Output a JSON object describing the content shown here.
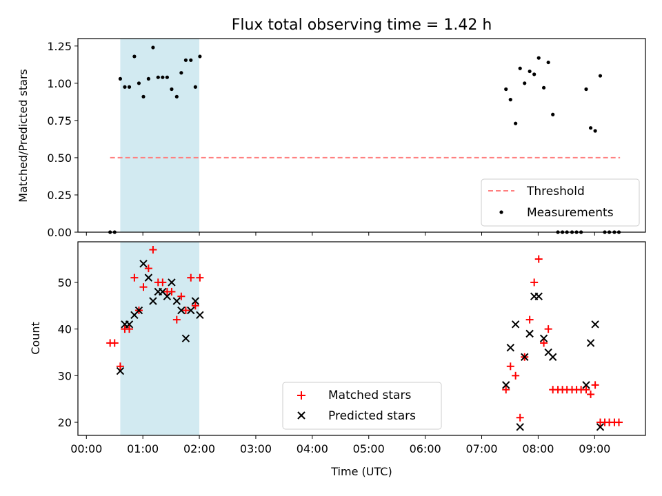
{
  "figure": {
    "title": "Flux total observing time = 1.42 h"
  },
  "chart_data": [
    {
      "type": "scatter",
      "title": "Flux total observing time = 1.42 h",
      "xlabel": "",
      "ylabel": "Matched/Predicted stars",
      "xlim": [
        -0.15,
        9.9
      ],
      "ylim": [
        0.0,
        1.3
      ],
      "yticks": [
        0.0,
        0.25,
        0.5,
        0.75,
        1.0,
        1.25
      ],
      "ytick_labels": [
        "0.00",
        "0.25",
        "0.50",
        "0.75",
        "1.00",
        "1.25"
      ],
      "shaded_region": {
        "x_start": 0.6,
        "x_end": 2.0,
        "color": "#add8e6"
      },
      "threshold": {
        "name": "Threshold",
        "y": 0.5,
        "x_start": 0.42,
        "x_end": 9.45,
        "color": "#ff7f7f",
        "style": "dashed"
      },
      "measurements": {
        "name": "Measurements",
        "color": "#000000",
        "points": [
          [
            0.42,
            0.0
          ],
          [
            0.5,
            0.0
          ],
          [
            0.6,
            1.03
          ],
          [
            0.68,
            0.975
          ],
          [
            0.76,
            0.975
          ],
          [
            0.85,
            1.18
          ],
          [
            0.93,
            1.0
          ],
          [
            1.01,
            0.91
          ],
          [
            1.1,
            1.03
          ],
          [
            1.18,
            1.24
          ],
          [
            1.27,
            1.04
          ],
          [
            1.35,
            1.04
          ],
          [
            1.43,
            1.04
          ],
          [
            1.51,
            0.96
          ],
          [
            1.6,
            0.91
          ],
          [
            1.68,
            1.07
          ],
          [
            1.76,
            1.155
          ],
          [
            1.85,
            1.155
          ],
          [
            1.93,
            0.975
          ],
          [
            2.01,
            1.18
          ],
          [
            7.43,
            0.96
          ],
          [
            7.51,
            0.89
          ],
          [
            7.6,
            0.73
          ],
          [
            7.68,
            1.1
          ],
          [
            7.76,
            1.0
          ],
          [
            7.85,
            1.08
          ],
          [
            7.93,
            1.06
          ],
          [
            8.01,
            1.17
          ],
          [
            8.1,
            0.97
          ],
          [
            8.18,
            1.14
          ],
          [
            8.26,
            0.79
          ],
          [
            8.35,
            0.0
          ],
          [
            8.43,
            0.0
          ],
          [
            8.51,
            0.0
          ],
          [
            8.6,
            0.0
          ],
          [
            8.68,
            0.0
          ],
          [
            8.76,
            0.0
          ],
          [
            8.85,
            0.96
          ],
          [
            8.93,
            0.7
          ],
          [
            9.01,
            0.68
          ],
          [
            9.1,
            1.05
          ],
          [
            9.18,
            0.0
          ],
          [
            9.26,
            0.0
          ],
          [
            9.35,
            0.0
          ],
          [
            9.43,
            0.0
          ]
        ]
      },
      "legend": {
        "placement": "lower-right",
        "entries": [
          "Threshold",
          "Measurements"
        ]
      }
    },
    {
      "type": "scatter",
      "title": "",
      "xlabel": "Time (UTC)",
      "ylabel": "Count",
      "xlim": [
        -0.15,
        9.9
      ],
      "ylim": [
        17.2,
        58.7
      ],
      "yticks": [
        20,
        30,
        40,
        50
      ],
      "ytick_labels": [
        "20",
        "30",
        "40",
        "50"
      ],
      "xticks": [
        0,
        1,
        2,
        3,
        4,
        5,
        6,
        7,
        8,
        9
      ],
      "xtick_labels": [
        "00:00",
        "01:00",
        "02:00",
        "03:00",
        "04:00",
        "05:00",
        "06:00",
        "07:00",
        "08:00",
        "09:00"
      ],
      "shaded_region": {
        "x_start": 0.6,
        "x_end": 2.0,
        "color": "#add8e6"
      },
      "series": [
        {
          "name": "Matched stars",
          "marker": "plus",
          "color": "#ff0000",
          "points": [
            [
              0.42,
              37
            ],
            [
              0.5,
              37
            ],
            [
              0.6,
              32
            ],
            [
              0.68,
              40
            ],
            [
              0.76,
              40
            ],
            [
              0.85,
              51
            ],
            [
              0.93,
              44
            ],
            [
              1.01,
              49
            ],
            [
              1.1,
              53
            ],
            [
              1.18,
              57
            ],
            [
              1.27,
              50
            ],
            [
              1.35,
              50
            ],
            [
              1.43,
              48
            ],
            [
              1.51,
              48
            ],
            [
              1.6,
              42
            ],
            [
              1.68,
              47
            ],
            [
              1.76,
              44
            ],
            [
              1.85,
              51
            ],
            [
              1.93,
              45
            ],
            [
              2.01,
              51
            ],
            [
              7.43,
              27
            ],
            [
              7.51,
              32
            ],
            [
              7.6,
              30
            ],
            [
              7.68,
              21
            ],
            [
              7.76,
              34
            ],
            [
              7.85,
              42
            ],
            [
              7.93,
              50
            ],
            [
              8.01,
              55
            ],
            [
              8.1,
              37
            ],
            [
              8.18,
              40
            ],
            [
              8.26,
              27
            ],
            [
              8.35,
              27
            ],
            [
              8.43,
              27
            ],
            [
              8.51,
              27
            ],
            [
              8.6,
              27
            ],
            [
              8.68,
              27
            ],
            [
              8.76,
              27
            ],
            [
              8.85,
              27
            ],
            [
              8.93,
              26
            ],
            [
              9.01,
              28
            ],
            [
              9.1,
              20
            ],
            [
              9.18,
              20
            ],
            [
              9.26,
              20
            ],
            [
              9.35,
              20
            ],
            [
              9.43,
              20
            ]
          ]
        },
        {
          "name": "Predicted stars",
          "marker": "x",
          "color": "#000000",
          "points": [
            [
              0.6,
              31
            ],
            [
              0.68,
              41
            ],
            [
              0.76,
              41
            ],
            [
              0.85,
              43
            ],
            [
              0.93,
              44
            ],
            [
              1.01,
              54
            ],
            [
              1.1,
              51
            ],
            [
              1.18,
              46
            ],
            [
              1.27,
              48
            ],
            [
              1.35,
              48
            ],
            [
              1.43,
              47
            ],
            [
              1.51,
              50
            ],
            [
              1.6,
              46
            ],
            [
              1.68,
              44
            ],
            [
              1.76,
              38
            ],
            [
              1.85,
              44
            ],
            [
              1.93,
              46
            ],
            [
              2.01,
              43
            ],
            [
              7.43,
              28
            ],
            [
              7.51,
              36
            ],
            [
              7.6,
              41
            ],
            [
              7.68,
              19
            ],
            [
              7.76,
              34
            ],
            [
              7.85,
              39
            ],
            [
              7.93,
              47
            ],
            [
              8.01,
              47
            ],
            [
              8.1,
              38
            ],
            [
              8.18,
              35
            ],
            [
              8.26,
              34
            ],
            [
              8.85,
              28
            ],
            [
              8.93,
              37
            ],
            [
              9.01,
              41
            ],
            [
              9.1,
              19
            ]
          ]
        }
      ],
      "legend": {
        "placement": "lower-center",
        "entries": [
          "Matched stars",
          "Predicted stars"
        ]
      }
    }
  ]
}
